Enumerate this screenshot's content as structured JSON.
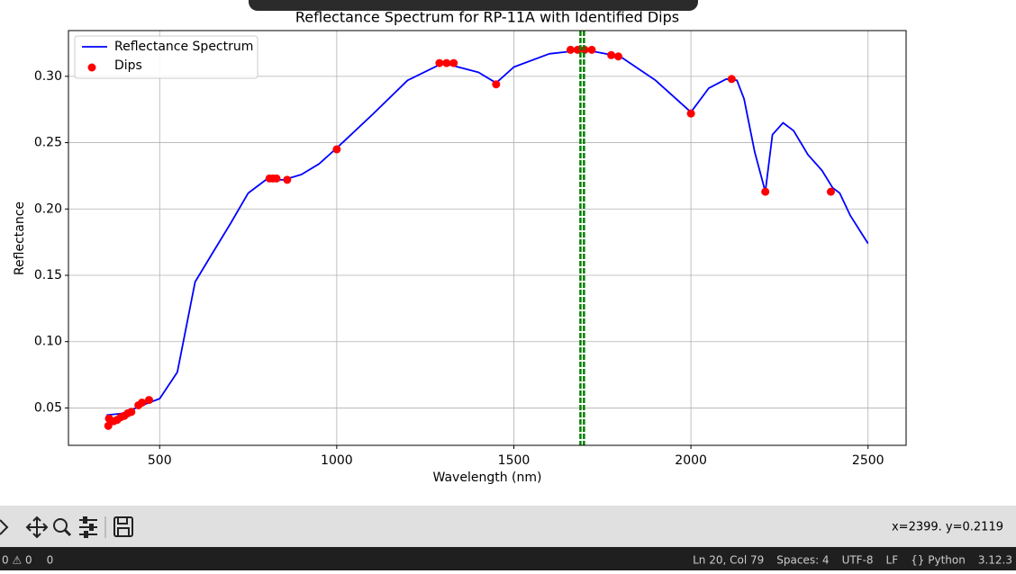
{
  "chart_data": {
    "type": "line",
    "title": "Reflectance Spectrum for RP-11A with Identified Dips",
    "x_label": "Wavelength (nm)",
    "y_label": "Reflectance",
    "xlim": [
      242.5,
      2607.5
    ],
    "ylim": [
      0.0218,
      0.3345
    ],
    "xticks": [
      500,
      1000,
      1500,
      2000,
      2500
    ],
    "yticks": [
      0.05,
      {
        "value": 0.1,
        "label": "0.10"
      },
      0.15,
      {
        "value": 0.2,
        "label": "0.20"
      },
      0.25,
      {
        "value": 0.3,
        "label": "0.30"
      }
    ],
    "grid": true,
    "legend": "upper left",
    "series": [
      {
        "name": "Reflectance Spectrum",
        "type": "line",
        "color": "#0000ff",
        "x": [
          350,
          400,
          450,
          500,
          550,
          600,
          650,
          700,
          750,
          800,
          850,
          900,
          950,
          1000,
          1100,
          1200,
          1300,
          1400,
          1450,
          1500,
          1600,
          1700,
          1800,
          1900,
          2000,
          2050,
          2100,
          2130,
          2150,
          2180,
          2210,
          2230,
          2260,
          2290,
          2330,
          2370,
          2400,
          2420,
          2450,
          2500
        ],
        "values": [
          0.0446,
          0.046,
          0.052,
          0.057,
          0.077,
          0.145,
          0.167,
          0.189,
          0.212,
          0.222,
          0.222,
          0.226,
          0.234,
          0.246,
          0.271,
          0.297,
          0.31,
          0.303,
          0.295,
          0.307,
          0.317,
          0.32,
          0.315,
          0.297,
          0.273,
          0.291,
          0.298,
          0.297,
          0.283,
          0.243,
          0.213,
          0.256,
          0.265,
          0.259,
          0.241,
          0.229,
          0.216,
          0.212,
          0.195,
          0.174
        ]
      },
      {
        "name": "Dips",
        "type": "scatter",
        "color": "#ff0000",
        "x": [
          355,
          357,
          370,
          380,
          390,
          400,
          410,
          420,
          440,
          450,
          470,
          810,
          820,
          830,
          860,
          1000,
          1290,
          1310,
          1330,
          1450,
          1660,
          1680,
          1700,
          1720,
          1775,
          1795,
          2000,
          2115,
          2210,
          2395
        ],
        "values": [
          0.0365,
          0.042,
          0.04,
          0.041,
          0.043,
          0.044,
          0.046,
          0.047,
          0.052,
          0.054,
          0.056,
          0.223,
          0.223,
          0.223,
          0.222,
          0.245,
          0.31,
          0.31,
          0.31,
          0.294,
          0.32,
          0.32,
          0.32,
          0.32,
          0.316,
          0.315,
          0.272,
          0.298,
          0.213,
          0.213
        ]
      }
    ],
    "vlines": {
      "x": [
        1688,
        1698
      ],
      "color": "#008000",
      "style": "dashed"
    }
  },
  "toolbar": {
    "coordinates": "x=2399. y=0.2119"
  },
  "status_bar": {
    "left": [
      "0 ⚠ 0",
      "0"
    ],
    "right": [
      "Ln 20, Col 79",
      "Spaces: 4",
      "UTF-8",
      "LF",
      "{} Python",
      "3.12.3"
    ]
  }
}
